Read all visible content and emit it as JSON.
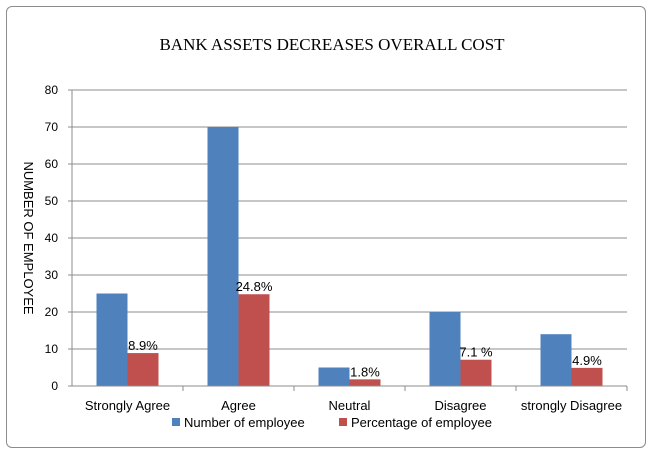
{
  "chart_data": {
    "type": "bar",
    "title": "BANK ASSETS DECREASES OVERALL COST",
    "ylabel": "NUMBER OF EMPLOYEE",
    "xlabel": "",
    "ylim": [
      0,
      80
    ],
    "yticks": [
      0,
      10,
      20,
      30,
      40,
      50,
      60,
      70,
      80
    ],
    "grid": true,
    "legend_position": "bottom",
    "categories": [
      "Strongly Agree",
      "Agree",
      "Neutral",
      "Disagree",
      "strongly Disagree"
    ],
    "series": [
      {
        "name": "Number of employee",
        "color": "#4f81bd",
        "values": [
          25,
          70,
          5,
          20,
          14
        ]
      },
      {
        "name": "Percentage of employee",
        "color": "#c0504d",
        "values": [
          8.9,
          24.8,
          1.8,
          7.1,
          4.9
        ],
        "labels": [
          "8.9%",
          "24.8%",
          "1.8%",
          "7.1 %",
          "4.9%"
        ]
      }
    ]
  }
}
